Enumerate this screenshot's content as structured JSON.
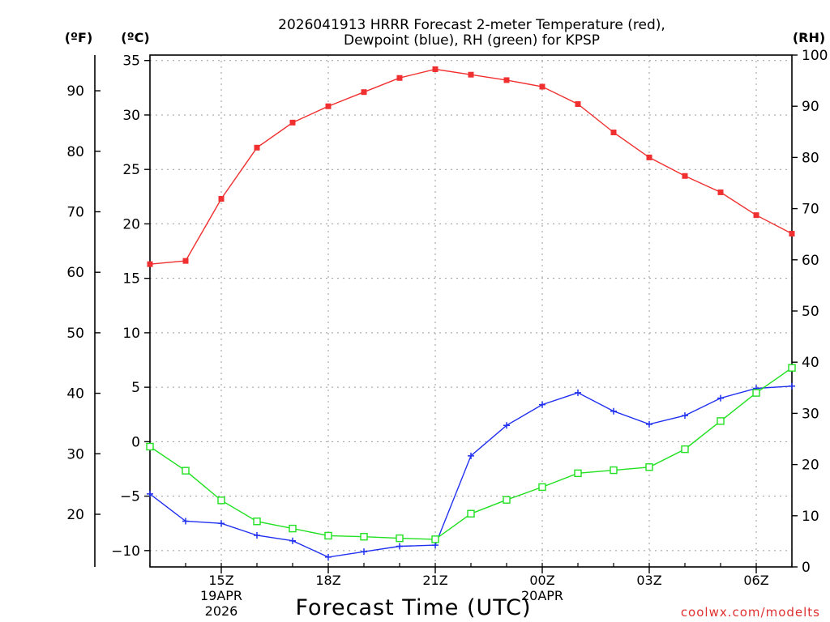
{
  "chart_data": {
    "type": "line",
    "title_line1": "2026041913 HRRR Forecast 2-meter Temperature (red),",
    "title_line2": "Dewpoint (blue), RH (green) for KPSP",
    "xlabel": "Forecast Time (UTC)",
    "credit": "coolwx.com/modelts",
    "axis_labels": {
      "fahrenheit": "(ºF)",
      "celsius": "(ºC)",
      "rh": "(RH)"
    },
    "x_hours": [
      13,
      14,
      15,
      16,
      17,
      18,
      19,
      20,
      21,
      22,
      23,
      24,
      25,
      26,
      27,
      28,
      29,
      30,
      31
    ],
    "xlim": [
      13,
      31
    ],
    "x_ticks": [
      {
        "hour": 15,
        "label": "15Z",
        "sub1": "19APR",
        "sub2": "2026"
      },
      {
        "hour": 18,
        "label": "18Z",
        "sub1": "",
        "sub2": ""
      },
      {
        "hour": 21,
        "label": "21Z",
        "sub1": "",
        "sub2": ""
      },
      {
        "hour": 24,
        "label": "00Z",
        "sub1": "20APR",
        "sub2": ""
      },
      {
        "hour": 27,
        "label": "03Z",
        "sub1": "",
        "sub2": ""
      },
      {
        "hour": 30,
        "label": "06Z",
        "sub1": "",
        "sub2": ""
      }
    ],
    "celsius_axis": {
      "ylim": [
        -11.5,
        35.5
      ],
      "ticks": [
        "35",
        "30",
        "25",
        "20",
        "15",
        "10",
        "5",
        "0",
        "−5",
        "−10"
      ],
      "tick_values": [
        35,
        30,
        25,
        20,
        15,
        10,
        5,
        0,
        -5,
        -10
      ]
    },
    "fahrenheit_axis": {
      "ticks": [
        "90",
        "80",
        "70",
        "60",
        "50",
        "40",
        "30",
        "20"
      ],
      "tick_values": [
        90,
        80,
        70,
        60,
        50,
        40,
        30,
        20
      ]
    },
    "rh_axis": {
      "ylim": [
        0,
        100
      ],
      "ticks": [
        "100",
        "90",
        "80",
        "70",
        "60",
        "50",
        "40",
        "30",
        "20",
        "10",
        "0"
      ],
      "tick_values": [
        100,
        90,
        80,
        70,
        60,
        50,
        40,
        30,
        20,
        10,
        0
      ]
    },
    "series": [
      {
        "name": "Temperature",
        "units": "°C",
        "color": "#f03030",
        "marker": "filled-square",
        "values": [
          16.3,
          16.6,
          22.3,
          27.0,
          29.3,
          30.8,
          32.1,
          33.4,
          34.2,
          33.7,
          33.2,
          32.6,
          31.0,
          28.4,
          26.1,
          24.4,
          22.9,
          20.8,
          19.1
        ]
      },
      {
        "name": "Dewpoint",
        "units": "°C",
        "color": "#2030f0",
        "marker": "plus",
        "values": [
          -4.8,
          -7.3,
          -7.5,
          -8.6,
          -9.1,
          -10.6,
          -10.1,
          -9.6,
          -9.5,
          -1.3,
          1.5,
          3.4,
          4.5,
          2.8,
          1.6,
          2.4,
          4.0,
          4.9,
          5.1
        ]
      },
      {
        "name": "Relative Humidity",
        "units": "%",
        "color": "#20e020",
        "marker": "open-square",
        "values": [
          23.5,
          18.8,
          13.0,
          8.9,
          7.5,
          6.1,
          5.9,
          5.6,
          5.4,
          10.4,
          13.1,
          15.6,
          18.3,
          18.9,
          19.5,
          23.0,
          28.5,
          34.0,
          38.9
        ]
      }
    ]
  }
}
